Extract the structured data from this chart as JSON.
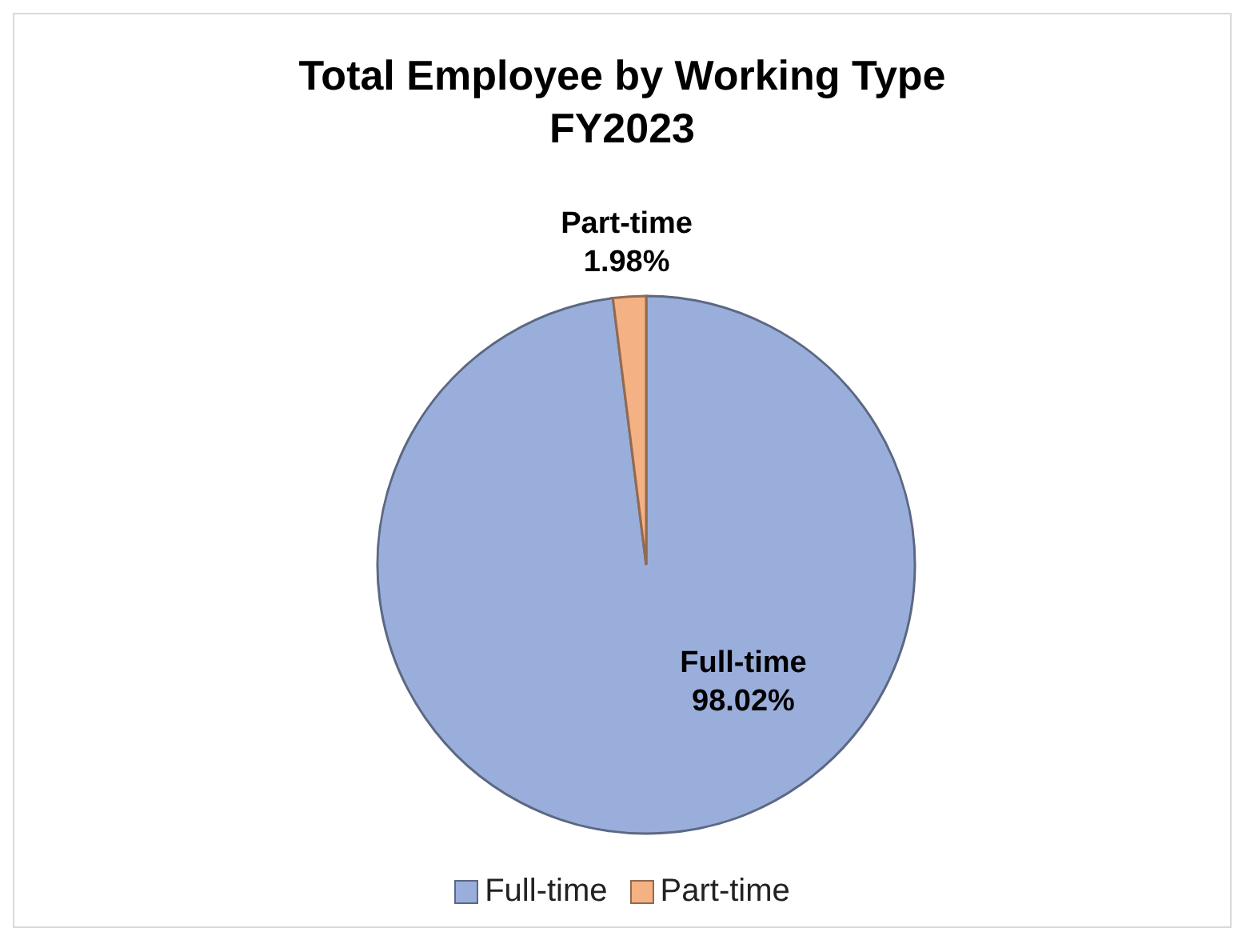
{
  "chart_data": {
    "type": "pie",
    "title": "Total Employee by Working Type\nFY2023",
    "categories": [
      "Full-time",
      "Part-time"
    ],
    "values": [
      98.02,
      1.98
    ],
    "value_labels": [
      "98.02%",
      "1.98%"
    ],
    "colors": [
      "#9aaedb",
      "#f4b183"
    ],
    "legend": "bottom"
  }
}
